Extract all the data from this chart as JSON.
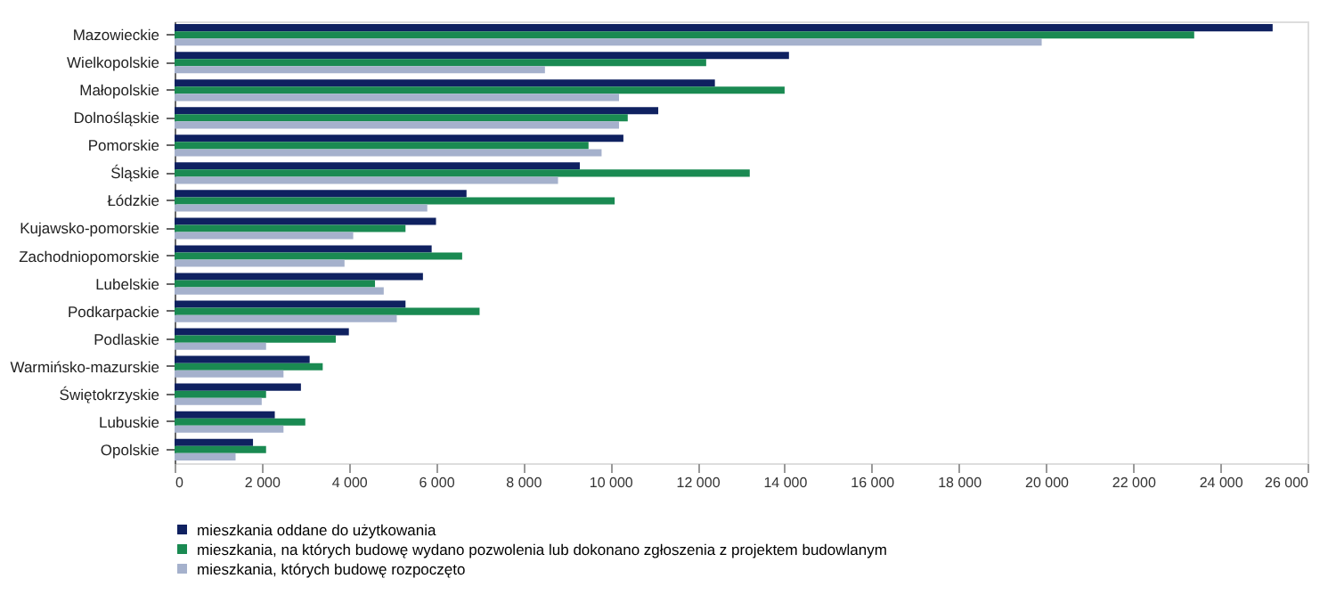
{
  "chart_data": {
    "type": "bar",
    "orientation": "horizontal",
    "legend": "bottom",
    "grid": false,
    "categories": [
      "Mazowieckie",
      "Wielkopolskie",
      "Małopolskie",
      "Dolnośląskie",
      "Pomorskie",
      "Śląskie",
      "Łódzkie",
      "Kujawsko-pomorskie",
      "Zachodniopomorskie",
      "Lubelskie",
      "Podkarpackie",
      "Podlaskie",
      "Warmińsko-mazurskie",
      "Świętokrzyskie",
      "Lubuskie",
      "Opolskie"
    ],
    "xlim": [
      0,
      26000
    ],
    "xticks": [
      0,
      {
        "value": 2000,
        "label": "2 000"
      },
      {
        "value": 4000,
        "label": "4 000"
      },
      {
        "value": 6000,
        "label": "6 000"
      },
      {
        "value": 8000,
        "label": "8 000"
      },
      {
        "value": 10000,
        "label": "10 000"
      },
      {
        "value": 12000,
        "label": "12 000"
      },
      {
        "value": 14000,
        "label": "14 000"
      },
      {
        "value": 16000,
        "label": "16 000"
      },
      {
        "value": 18000,
        "label": "18 000"
      },
      {
        "value": 20000,
        "label": "20 000"
      },
      {
        "value": 22000,
        "label": "22 000"
      },
      {
        "value": 24000,
        "label": "24 000"
      },
      {
        "value": 26000,
        "label": "26 000"
      }
    ],
    "series": [
      {
        "name": "mieszkania oddane do użytkowania",
        "color": "#0f2160",
        "values": [
          25200,
          14100,
          12400,
          11100,
          10300,
          9300,
          6700,
          6000,
          5900,
          5700,
          5300,
          4000,
          3100,
          2900,
          2300,
          1800
        ]
      },
      {
        "name": "mieszkania, na których budowę wydano pozwolenia lub dokonano zgłoszenia z projektem budowlanym",
        "color": "#1a8a52",
        "values": [
          23400,
          12200,
          14000,
          10400,
          9500,
          13200,
          10100,
          5300,
          6600,
          4600,
          7000,
          3700,
          3400,
          2100,
          3000,
          2100
        ]
      },
      {
        "name": "mieszkania, których budowę rozpoczęto",
        "color": "#a5b1cc",
        "values": [
          19900,
          8500,
          10200,
          10200,
          9800,
          8800,
          5800,
          4100,
          3900,
          4800,
          5100,
          2100,
          2500,
          2000,
          2500,
          1400
        ]
      }
    ]
  }
}
